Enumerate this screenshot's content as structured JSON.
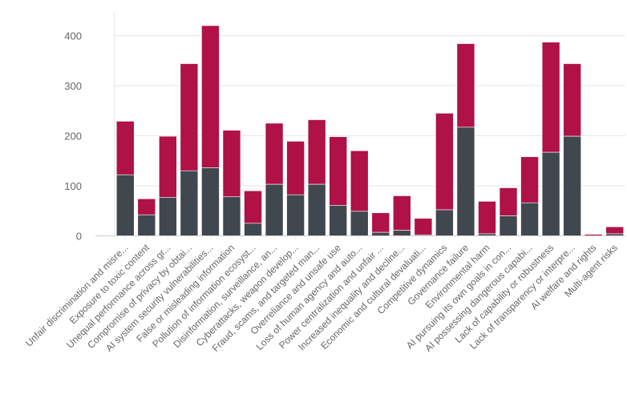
{
  "colors": {
    "series_bottom": "#41474f",
    "series_top": "#b01147",
    "grid": "#e6e6e6",
    "axis_text": "#666666"
  },
  "chart_data": {
    "type": "bar",
    "stacked": true,
    "categories": [
      "Unfair discrimination and misre...",
      "Exposure to toxic content",
      "Unequal performance across gr...",
      "Compromise of privacy by obtai...",
      "AI system security vulnerabilities...",
      "False or misleading information",
      "Pollution of information ecosyst...",
      "Disinformation, surveillance, an...",
      "Cyberattacks, weapon develop...",
      "Fraud, scams, and targeted man...",
      "Overreliance and unsafe use",
      "Loss of human agency and auto...",
      "Power centralization and unfair ...",
      "Increased inequality and decline...",
      "Economic and cultural devaluati...",
      "Competitive dynamics",
      "Governance failure",
      "Environmental harm",
      "AI pursuing its own goals in con...",
      "AI possessing dangerous capabi...",
      "Lack of capability or robustness",
      "Lack of transparency or interpre...",
      "AI welfare and rights",
      "Multi-agent risks"
    ],
    "series": [
      {
        "values": [
          122,
          42,
          77,
          130,
          136,
          78,
          25,
          103,
          82,
          103,
          61,
          49,
          7,
          11,
          2,
          52,
          217,
          4,
          40,
          66,
          167,
          199,
          0,
          4
        ]
      },
      {
        "values": [
          107,
          32,
          122,
          214,
          284,
          133,
          65,
          122,
          107,
          129,
          137,
          121,
          39,
          69,
          33,
          193,
          167,
          65,
          56,
          92,
          220,
          145,
          3,
          14
        ]
      }
    ],
    "ylim": [
      0,
      440
    ],
    "yticks": [
      "0",
      "100",
      "200",
      "300",
      "400"
    ],
    "grid": true,
    "legend": "none"
  }
}
